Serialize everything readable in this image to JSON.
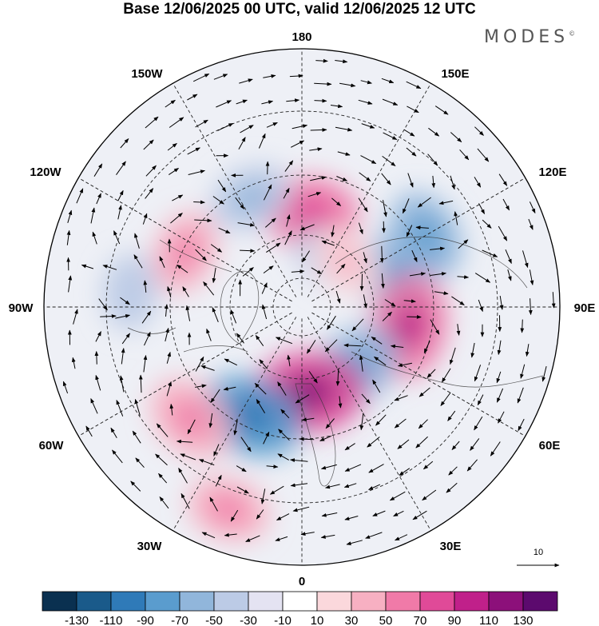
{
  "title": "Base 12/06/2025 00 UTC, valid 12/06/2025 12 UTC",
  "brand": "MODES",
  "brand_mark": "©",
  "longitude_labels": {
    "top": "180",
    "bottom": "0",
    "left": "90W",
    "right": "90E",
    "upper_left": "150W",
    "upper_right": "150E",
    "mid_upper_left": "120W",
    "mid_upper_right": "120E",
    "mid_lower_left": "60W",
    "mid_lower_right": "60E",
    "lower_left": "30W",
    "lower_right": "30E"
  },
  "vector_scale": {
    "label": "10"
  },
  "colorbar": {
    "labels": [
      "-130",
      "-110",
      "-90",
      "-70",
      "-50",
      "-30",
      "-10",
      "10",
      "30",
      "50",
      "70",
      "90",
      "110",
      "130"
    ],
    "colors": [
      "#0a3050",
      "#1a5a8a",
      "#2f7ab8",
      "#5a9cce",
      "#91b6db",
      "#bccbe6",
      "#e4e3f2",
      "#ffffff",
      "#fbd8dc",
      "#f7b0c2",
      "#f07aa8",
      "#e04a98",
      "#c0208a",
      "#8c107a",
      "#5c0a6e"
    ]
  },
  "anomaly_blobs": [
    {
      "lon": 175,
      "colat": 33,
      "value": 60
    },
    {
      "lon": 150,
      "colat": 20,
      "value": -30
    },
    {
      "lon": 105,
      "colat": 35,
      "value": -60
    },
    {
      "lon": 120,
      "colat": 50,
      "value": -50
    },
    {
      "lon": 80,
      "colat": 38,
      "value": 70
    },
    {
      "lon": 40,
      "colat": 28,
      "value": -60
    },
    {
      "lon": 4,
      "colat": 30,
      "value": 80
    },
    {
      "lon": -25,
      "colat": 42,
      "value": -70
    },
    {
      "lon": -45,
      "colat": 55,
      "value": 50
    },
    {
      "lon": -20,
      "colat": 75,
      "value": 40
    },
    {
      "lon": -155,
      "colat": 42,
      "value": -40
    },
    {
      "lon": -115,
      "colat": 45,
      "value": 40
    },
    {
      "lon": -95,
      "colat": 60,
      "value": -30
    },
    {
      "lon": 135,
      "colat": 22,
      "value": 30
    }
  ]
}
